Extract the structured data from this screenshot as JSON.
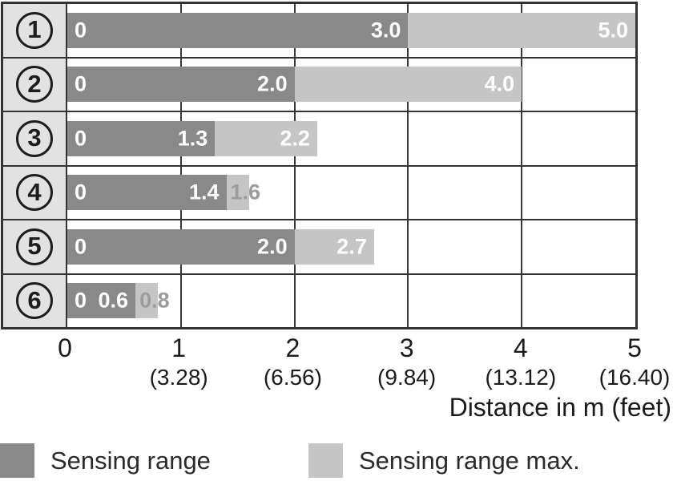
{
  "chart_data": {
    "type": "bar",
    "orientation": "horizontal",
    "title": "",
    "xlabel": "Distance in m (feet)",
    "ylabel": "",
    "xlim": [
      0,
      5
    ],
    "grid": true,
    "legend_position": "bottom",
    "categories": [
      "1",
      "2",
      "3",
      "4",
      "5",
      "6"
    ],
    "series": [
      {
        "name": "Sensing range",
        "values": [
          3.0,
          2.0,
          1.3,
          1.4,
          2.0,
          0.6
        ]
      },
      {
        "name": "Sensing range max.",
        "values": [
          5.0,
          4.0,
          2.2,
          1.6,
          2.7,
          0.8
        ]
      }
    ],
    "rows": [
      {
        "id": "1",
        "start_label": "0",
        "sensing_range": 3.0,
        "sensing_range_label": "3.0",
        "sensing_range_max": 5.0,
        "sensing_range_max_label": "5.0",
        "max_label_style": "inside"
      },
      {
        "id": "2",
        "start_label": "0",
        "sensing_range": 2.0,
        "sensing_range_label": "2.0",
        "sensing_range_max": 4.0,
        "sensing_range_max_label": "4.0",
        "max_label_style": "inside"
      },
      {
        "id": "3",
        "start_label": "0",
        "sensing_range": 1.3,
        "sensing_range_label": "1.3",
        "sensing_range_max": 2.2,
        "sensing_range_max_label": "2.2",
        "max_label_style": "inside"
      },
      {
        "id": "4",
        "start_label": "0",
        "sensing_range": 1.4,
        "sensing_range_label": "1.4",
        "sensing_range_max": 1.6,
        "sensing_range_max_label": "1.6",
        "max_label_style": "overflow"
      },
      {
        "id": "5",
        "start_label": "0",
        "sensing_range": 2.0,
        "sensing_range_label": "2.0",
        "sensing_range_max": 2.7,
        "sensing_range_max_label": "2.7",
        "max_label_style": "inside"
      },
      {
        "id": "6",
        "start_label": "0",
        "sensing_range": 0.6,
        "sensing_range_label": "0.6",
        "sensing_range_max": 0.8,
        "sensing_range_max_label": "0.8",
        "max_label_style": "overflow"
      }
    ],
    "x_ticks": [
      {
        "m": "0",
        "feet": ""
      },
      {
        "m": "1",
        "feet": "(3.28)"
      },
      {
        "m": "2",
        "feet": "(6.56)"
      },
      {
        "m": "3",
        "feet": "(9.84)"
      },
      {
        "m": "4",
        "feet": "(13.12)"
      },
      {
        "m": "5",
        "feet": "(16.40)"
      }
    ],
    "legend": [
      {
        "label": "Sensing range",
        "color": "#898989"
      },
      {
        "label": "Sensing range max.",
        "color": "#c5c5c6"
      }
    ]
  },
  "colors": {
    "bar_dark": "#898989",
    "bar_light": "#c5c5c6",
    "row_header_bg": "#e2e2e2",
    "grid_line": "#3a3a3a",
    "border": "#333333",
    "bar_label_white": "#ffffff",
    "bar_label_overflow_gray": "#9b9b9b",
    "axis_text": "#1b1b1b"
  }
}
